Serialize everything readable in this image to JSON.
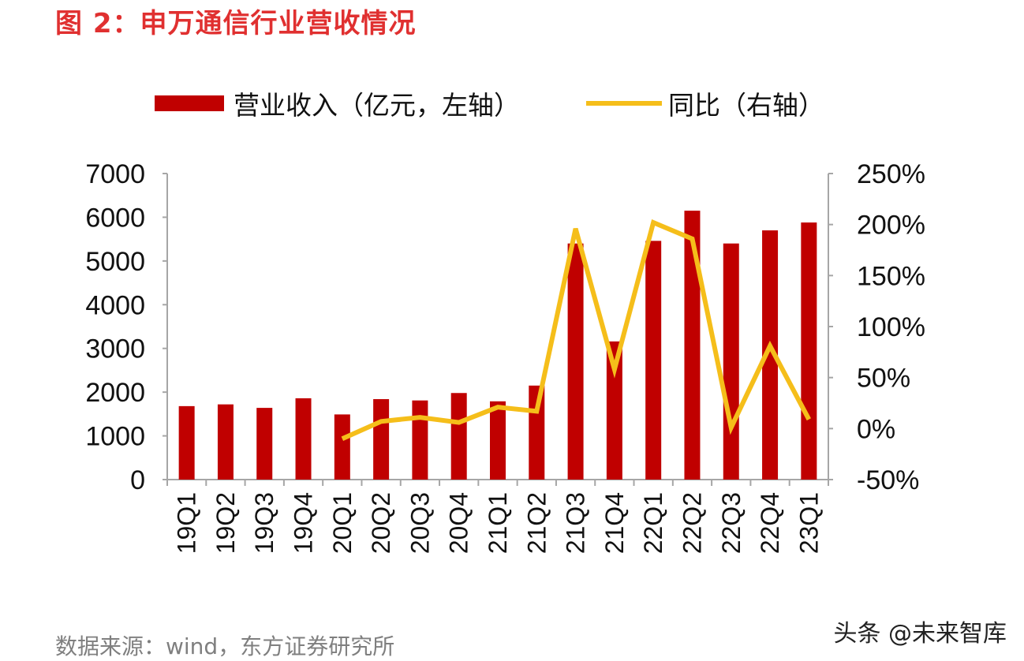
{
  "title": "图 2：申万通信行业营收情况",
  "source": "数据来源：wind，东方证券研究所",
  "watermark": "头条 @未来智库",
  "legend": {
    "bar_label": "营业收入（亿元，左轴）",
    "line_label": "同比（右轴）"
  },
  "colors": {
    "bar": "#c00000",
    "line": "#f5be1a",
    "title": "#e03030"
  },
  "chart_data": {
    "type": "bar",
    "categories": [
      "19Q1",
      "19Q2",
      "19Q3",
      "19Q4",
      "20Q1",
      "20Q2",
      "20Q3",
      "20Q4",
      "21Q1",
      "21Q2",
      "21Q3",
      "21Q4",
      "22Q1",
      "22Q2",
      "22Q3",
      "22Q4",
      "23Q1"
    ],
    "series": [
      {
        "name": "营业收入（亿元，左轴）",
        "type": "bar",
        "axis": "left",
        "values": [
          1680,
          1720,
          1640,
          1860,
          1490,
          1840,
          1810,
          1980,
          1790,
          2150,
          5400,
          3160,
          5460,
          6150,
          5400,
          5700,
          5880
        ]
      },
      {
        "name": "同比（右轴）",
        "type": "line",
        "axis": "right",
        "values": [
          null,
          null,
          null,
          null,
          -10,
          7,
          11,
          6,
          21,
          17,
          196,
          58,
          202,
          186,
          1,
          81,
          9
        ]
      }
    ],
    "left_axis": {
      "ylim": [
        0,
        7000
      ],
      "ticks": [
        0,
        1000,
        2000,
        3000,
        4000,
        5000,
        6000,
        7000
      ],
      "tick_labels": [
        "0",
        "1000",
        "2000",
        "3000",
        "4000",
        "5000",
        "6000",
        "7000"
      ]
    },
    "right_axis": {
      "ylim": [
        -50,
        250
      ],
      "ticks": [
        -50,
        0,
        50,
        100,
        150,
        200,
        250
      ],
      "tick_labels": [
        "-50%",
        "0%",
        "50%",
        "100%",
        "150%",
        "200%",
        "250%"
      ]
    },
    "grid": false,
    "legend_position": "top"
  }
}
